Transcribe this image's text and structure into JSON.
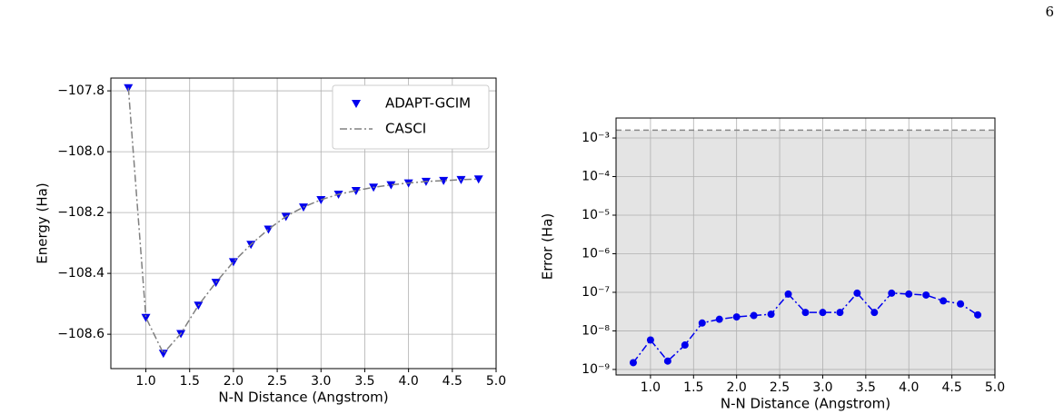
{
  "page_number": "6",
  "chart_data": [
    {
      "type": "line",
      "xlabel": "N-N Distance (Angstrom)",
      "ylabel": "Energy (Ha)",
      "x": [
        0.8,
        1.0,
        1.2,
        1.4,
        1.6,
        1.8,
        2.0,
        2.2,
        2.4,
        2.6,
        2.8,
        3.0,
        3.2,
        3.4,
        3.6,
        3.8,
        4.0,
        4.2,
        4.4,
        4.6,
        4.8
      ],
      "series": [
        {
          "name": "ADAPT-GCIM",
          "color": "#0000ee",
          "marker": "triangle-down",
          "linestyle": "none",
          "values": [
            -107.79,
            -108.545,
            -108.663,
            -108.598,
            -108.505,
            -108.43,
            -108.362,
            -108.305,
            -108.255,
            -108.213,
            -108.182,
            -108.158,
            -108.14,
            -108.128,
            -108.117,
            -108.109,
            -108.103,
            -108.098,
            -108.095,
            -108.092,
            -108.09
          ]
        },
        {
          "name": "CASCI",
          "color": "#808080",
          "marker": "none",
          "linestyle": "dashdot",
          "values": [
            -107.79,
            -108.545,
            -108.663,
            -108.598,
            -108.505,
            -108.43,
            -108.362,
            -108.305,
            -108.255,
            -108.213,
            -108.182,
            -108.158,
            -108.14,
            -108.128,
            -108.117,
            -108.109,
            -108.103,
            -108.098,
            -108.095,
            -108.092,
            -108.09
          ]
        }
      ],
      "xlim": [
        0.6,
        5.0
      ],
      "xticks": [
        {
          "value": 1.0,
          "label": "1.0"
        },
        {
          "value": 1.5,
          "label": "1.5"
        },
        {
          "value": 2.0,
          "label": "2.0"
        },
        {
          "value": 2.5,
          "label": "2.5"
        },
        {
          "value": 3.0,
          "label": "3.0"
        },
        {
          "value": 3.5,
          "label": "3.5"
        },
        {
          "value": 4.0,
          "label": "4.0"
        },
        {
          "value": 4.5,
          "label": "4.5"
        },
        {
          "value": 5.0,
          "label": "5.0"
        }
      ],
      "ylim": [
        -108.713,
        -107.758
      ],
      "yticks": [
        {
          "value": -108.6,
          "label": "−108.6"
        },
        {
          "value": -108.4,
          "label": "−108.4"
        },
        {
          "value": -108.2,
          "label": "−108.2"
        },
        {
          "value": -108.0,
          "label": "−108.0"
        },
        {
          "value": -107.8,
          "label": "−107.8"
        }
      ],
      "yscale": "linear",
      "grid": true,
      "legend": "upper right"
    },
    {
      "type": "line",
      "xlabel": "N-N Distance (Angstrom)",
      "ylabel": "Error (Ha)",
      "x": [
        0.8,
        1.0,
        1.2,
        1.4,
        1.6,
        1.8,
        2.0,
        2.2,
        2.4,
        2.6,
        2.8,
        3.0,
        3.2,
        3.4,
        3.6,
        3.8,
        4.0,
        4.2,
        4.4,
        4.6,
        4.8
      ],
      "series": [
        {
          "color": "#0000ee",
          "marker": "circle",
          "linestyle": "dashdot",
          "values": [
            1.5e-09,
            5.8e-09,
            1.65e-09,
            4.3e-09,
            1.6e-08,
            2e-08,
            2.3e-08,
            2.5e-08,
            2.7e-08,
            9e-08,
            3e-08,
            3e-08,
            3e-08,
            9.5e-08,
            3e-08,
            9.5e-08,
            9e-08,
            8.5e-08,
            6e-08,
            5e-08,
            2.6e-08
          ]
        }
      ],
      "hline": 0.0016,
      "hline_color": "#888888",
      "shade_below": "#e4e4e4",
      "xlim": [
        0.6,
        5.0
      ],
      "xticks": [
        {
          "value": 1.0,
          "label": "1.0"
        },
        {
          "value": 1.5,
          "label": "1.5"
        },
        {
          "value": 2.0,
          "label": "2.0"
        },
        {
          "value": 2.5,
          "label": "2.5"
        },
        {
          "value": 3.0,
          "label": "3.0"
        },
        {
          "value": 3.5,
          "label": "3.5"
        },
        {
          "value": 4.0,
          "label": "4.0"
        },
        {
          "value": 4.5,
          "label": "4.5"
        },
        {
          "value": 5.0,
          "label": "5.0"
        }
      ],
      "ylim": [
        7.2e-10,
        0.0033
      ],
      "yticks": [
        {
          "value": 1e-09,
          "label": "10⁻⁹"
        },
        {
          "value": 1e-08,
          "label": "10⁻⁸"
        },
        {
          "value": 1e-07,
          "label": "10⁻⁷"
        },
        {
          "value": 1e-06,
          "label": "10⁻⁶"
        },
        {
          "value": 1e-05,
          "label": "10⁻⁵"
        },
        {
          "value": 0.0001,
          "label": "10⁻⁴"
        },
        {
          "value": 0.001,
          "label": "10⁻³"
        }
      ],
      "yscale": "log",
      "grid": true
    }
  ]
}
